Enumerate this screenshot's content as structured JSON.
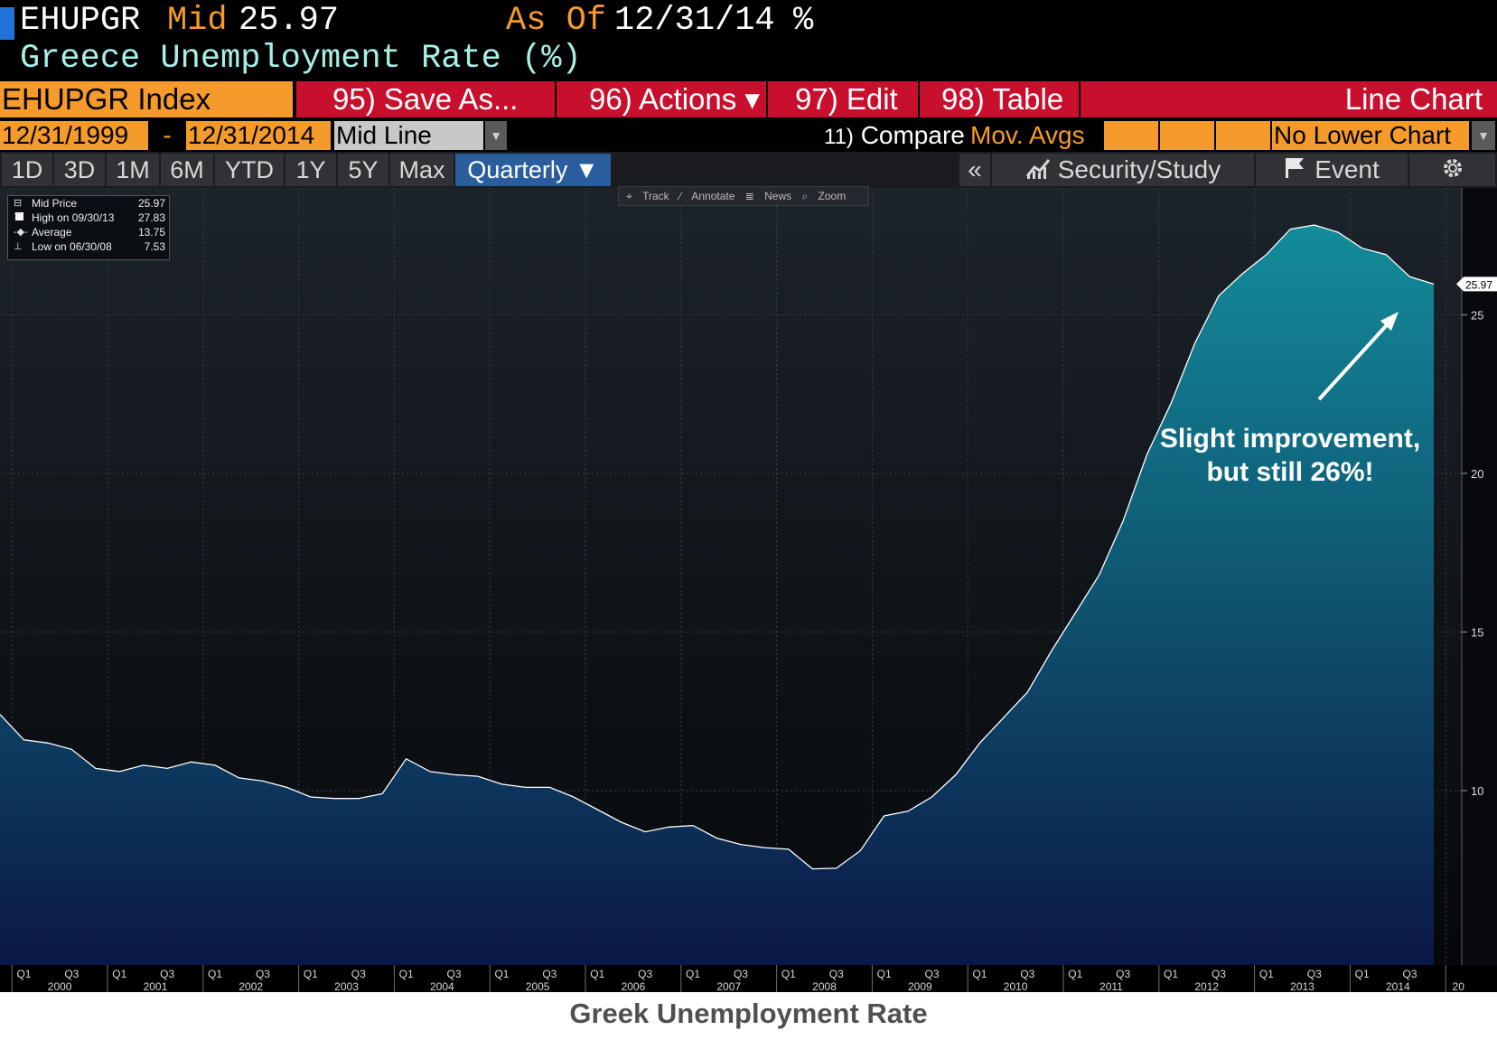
{
  "header": {
    "ticker": "EHUPGR",
    "mid_label": "Mid",
    "mid_value": "25.97",
    "as_of_label": "As Of",
    "as_of_value": "12/31/14",
    "unit": "%",
    "title": "Greece Unemployment Rate (%)"
  },
  "toolbar": {
    "index": "EHUPGR Index",
    "save_as": "95) Save As...",
    "actions": "96) Actions ▾",
    "edit": "97) Edit ▾",
    "table": "98) Table",
    "chart_type": "Line Chart"
  },
  "range_bar": {
    "start_date": "12/31/1999",
    "dash": "-",
    "end_date": "12/31/2014",
    "line_mode": "Mid Line",
    "compare_num": "11)",
    "compare": "Compare",
    "mov_avgs": "Mov. Avgs",
    "lower_chart": "No Lower Chart"
  },
  "period_tabs": [
    "1D",
    "3D",
    "1M",
    "6M",
    "YTD",
    "1Y",
    "5Y",
    "Max",
    "Quarterly ▼"
  ],
  "right_tools": {
    "collapse": "«",
    "security_study": "Security/Study",
    "event": "Event",
    "settings_icon": "gear-icon",
    "chart_icon": "chart-up-icon",
    "flag_icon": "flag-icon"
  },
  "mini_toolbar": [
    "Track",
    "Annotate",
    "News",
    "Zoom"
  ],
  "legend": {
    "rows": [
      {
        "label": "Mid Price",
        "value": "25.97"
      },
      {
        "label": "High on 09/30/13",
        "value": "27.83"
      },
      {
        "label": "Average",
        "value": "13.75"
      },
      {
        "label": "Low on 06/30/08",
        "value": "7.53"
      }
    ]
  },
  "annotation": {
    "line1": "Slight improvement,",
    "line2": "but still 26%!"
  },
  "caption": "Greek Unemployment Rate",
  "colors": {
    "background_top": "#1c232a",
    "background_bottom": "#05070a",
    "area_top": "#138c9a",
    "area_bottom": "#0b1747",
    "line": "#ffffff",
    "accent_orange": "#f59b2b",
    "accent_red": "#c8102e"
  },
  "chart_data": {
    "type": "area",
    "title": "",
    "xlabel": "",
    "ylabel": "",
    "ylim": [
      4.5,
      29
    ],
    "y_ticks": [
      10,
      15,
      20,
      25
    ],
    "last_value_label": "25.97",
    "x_quarter_labels": [
      "Q1",
      "Q3"
    ],
    "x_year_labels": [
      "2000",
      "2001",
      "2002",
      "2003",
      "2004",
      "2005",
      "2006",
      "2007",
      "2008",
      "2009",
      "2010",
      "2011",
      "2012",
      "2013",
      "2014",
      "20"
    ],
    "x": [
      "1999-Q4",
      "2000-Q1",
      "2000-Q2",
      "2000-Q3",
      "2000-Q4",
      "2001-Q1",
      "2001-Q2",
      "2001-Q3",
      "2001-Q4",
      "2002-Q1",
      "2002-Q2",
      "2002-Q3",
      "2002-Q4",
      "2003-Q1",
      "2003-Q2",
      "2003-Q3",
      "2003-Q4",
      "2004-Q1",
      "2004-Q2",
      "2004-Q3",
      "2004-Q4",
      "2005-Q1",
      "2005-Q2",
      "2005-Q3",
      "2005-Q4",
      "2006-Q1",
      "2006-Q2",
      "2006-Q3",
      "2006-Q4",
      "2007-Q1",
      "2007-Q2",
      "2007-Q3",
      "2007-Q4",
      "2008-Q1",
      "2008-Q2",
      "2008-Q3",
      "2008-Q4",
      "2009-Q1",
      "2009-Q2",
      "2009-Q3",
      "2009-Q4",
      "2010-Q1",
      "2010-Q2",
      "2010-Q3",
      "2010-Q4",
      "2011-Q1",
      "2011-Q2",
      "2011-Q3",
      "2011-Q4",
      "2012-Q1",
      "2012-Q2",
      "2012-Q3",
      "2012-Q4",
      "2013-Q1",
      "2013-Q2",
      "2013-Q3",
      "2013-Q4",
      "2014-Q1",
      "2014-Q2",
      "2014-Q3",
      "2014-Q4"
    ],
    "series": [
      {
        "values": [
          12.4,
          11.6,
          11.5,
          11.3,
          10.7,
          10.6,
          10.8,
          10.7,
          10.9,
          10.8,
          10.4,
          10.3,
          10.1,
          9.8,
          9.75,
          9.75,
          9.9,
          11.0,
          10.6,
          10.5,
          10.45,
          10.2,
          10.1,
          10.1,
          9.8,
          9.4,
          9.0,
          8.7,
          8.85,
          8.9,
          8.5,
          8.3,
          8.2,
          8.15,
          7.53,
          7.55,
          8.1,
          9.2,
          9.35,
          9.8,
          10.5,
          11.5,
          12.3,
          13.1,
          14.4,
          15.6,
          16.8,
          18.5,
          20.6,
          22.2,
          24.1,
          25.6,
          26.3,
          26.9,
          27.7,
          27.83,
          27.6,
          27.1,
          26.9,
          26.2,
          25.97
        ]
      }
    ]
  }
}
